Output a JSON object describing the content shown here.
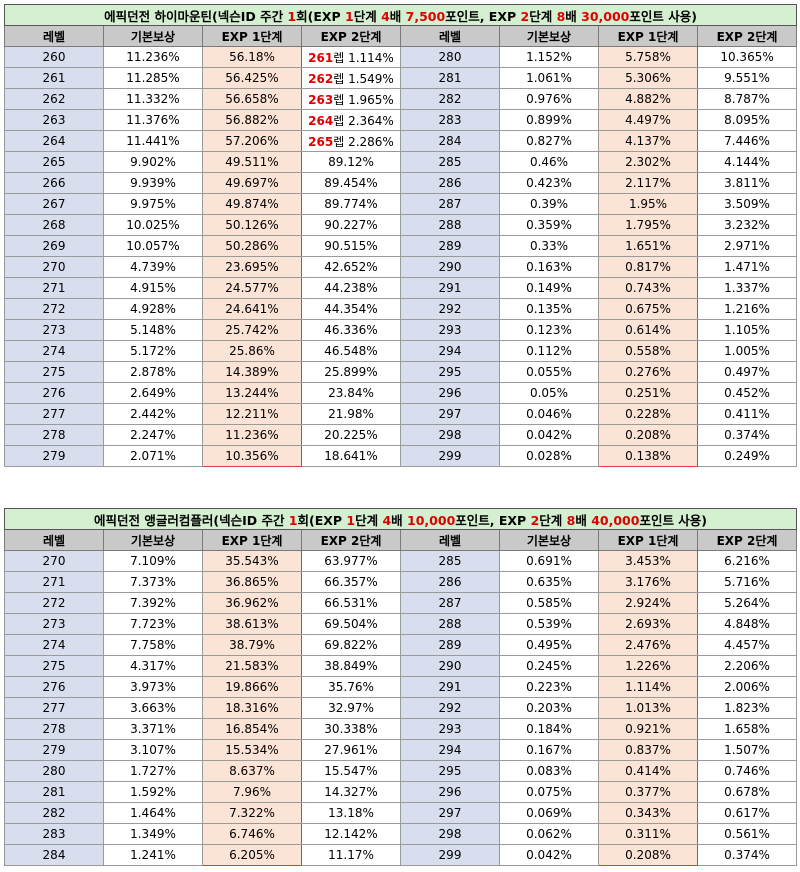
{
  "colors": {
    "title_bg": "#d4f0d0",
    "header_bg": "#c9c9c9",
    "level_bg": "#d9deee",
    "exp1_bg": "#fbe3d5",
    "exp1_border": "#e53935",
    "highlight_text": "#e00000"
  },
  "headers": [
    "레벨",
    "기본보상",
    "EXP 1단계",
    "EXP 2단계",
    "레벨",
    "기본보상",
    "EXP 1단계",
    "EXP 2단계"
  ],
  "tables": [
    {
      "title_parts": [
        {
          "t": "에픽던전 하이마운틴(넥슨ID 주간 ",
          "r": false
        },
        {
          "t": "1",
          "r": true
        },
        {
          "t": "회(EXP ",
          "r": false
        },
        {
          "t": "1",
          "r": true
        },
        {
          "t": "단계 ",
          "r": false
        },
        {
          "t": "4",
          "r": true
        },
        {
          "t": "배 ",
          "r": false
        },
        {
          "t": "7,500",
          "r": true
        },
        {
          "t": "포인트, EXP ",
          "r": false
        },
        {
          "t": "2",
          "r": true
        },
        {
          "t": "단계 ",
          "r": false
        },
        {
          "t": "8",
          "r": true
        },
        {
          "t": "배 ",
          "r": false
        },
        {
          "t": "30,000",
          "r": true
        },
        {
          "t": "포인트 사용)",
          "r": false
        }
      ],
      "rows": [
        {
          "l1": "260",
          "b1": "11.236%",
          "e1a": "56.18%",
          "e2a_lvl": "261",
          "e2a_suffix": "렙",
          "e2a": "1.114%",
          "l2": "280",
          "b2": "1.152%",
          "e1b": "5.758%",
          "e2b": "10.365%"
        },
        {
          "l1": "261",
          "b1": "11.285%",
          "e1a": "56.425%",
          "e2a_lvl": "262",
          "e2a_suffix": "렙",
          "e2a": "1.549%",
          "l2": "281",
          "b2": "1.061%",
          "e1b": "5.306%",
          "e2b": "9.551%"
        },
        {
          "l1": "262",
          "b1": "11.332%",
          "e1a": "56.658%",
          "e2a_lvl": "263",
          "e2a_suffix": "렙",
          "e2a": "1.965%",
          "l2": "282",
          "b2": "0.976%",
          "e1b": "4.882%",
          "e2b": "8.787%"
        },
        {
          "l1": "263",
          "b1": "11.376%",
          "e1a": "56.882%",
          "e2a_lvl": "264",
          "e2a_suffix": "렙",
          "e2a": "2.364%",
          "l2": "283",
          "b2": "0.899%",
          "e1b": "4.497%",
          "e2b": "8.095%"
        },
        {
          "l1": "264",
          "b1": "11.441%",
          "e1a": "57.206%",
          "e2a_lvl": "265",
          "e2a_suffix": "렙",
          "e2a": "2.286%",
          "l2": "284",
          "b2": "0.827%",
          "e1b": "4.137%",
          "e2b": "7.446%"
        },
        {
          "l1": "265",
          "b1": "9.902%",
          "e1a": "49.511%",
          "e2a": "89.12%",
          "l2": "285",
          "b2": "0.46%",
          "e1b": "2.302%",
          "e2b": "4.144%"
        },
        {
          "l1": "266",
          "b1": "9.939%",
          "e1a": "49.697%",
          "e2a": "89.454%",
          "l2": "286",
          "b2": "0.423%",
          "e1b": "2.117%",
          "e2b": "3.811%"
        },
        {
          "l1": "267",
          "b1": "9.975%",
          "e1a": "49.874%",
          "e2a": "89.774%",
          "l2": "287",
          "b2": "0.39%",
          "e1b": "1.95%",
          "e2b": "3.509%"
        },
        {
          "l1": "268",
          "b1": "10.025%",
          "e1a": "50.126%",
          "e2a": "90.227%",
          "l2": "288",
          "b2": "0.359%",
          "e1b": "1.795%",
          "e2b": "3.232%"
        },
        {
          "l1": "269",
          "b1": "10.057%",
          "e1a": "50.286%",
          "e2a": "90.515%",
          "l2": "289",
          "b2": "0.33%",
          "e1b": "1.651%",
          "e2b": "2.971%"
        },
        {
          "l1": "270",
          "b1": "4.739%",
          "e1a": "23.695%",
          "e2a": "42.652%",
          "l2": "290",
          "b2": "0.163%",
          "e1b": "0.817%",
          "e2b": "1.471%"
        },
        {
          "l1": "271",
          "b1": "4.915%",
          "e1a": "24.577%",
          "e2a": "44.238%",
          "l2": "291",
          "b2": "0.149%",
          "e1b": "0.743%",
          "e2b": "1.337%"
        },
        {
          "l1": "272",
          "b1": "4.928%",
          "e1a": "24.641%",
          "e2a": "44.354%",
          "l2": "292",
          "b2": "0.135%",
          "e1b": "0.675%",
          "e2b": "1.216%"
        },
        {
          "l1": "273",
          "b1": "5.148%",
          "e1a": "25.742%",
          "e2a": "46.336%",
          "l2": "293",
          "b2": "0.123%",
          "e1b": "0.614%",
          "e2b": "1.105%"
        },
        {
          "l1": "274",
          "b1": "5.172%",
          "e1a": "25.86%",
          "e2a": "46.548%",
          "l2": "294",
          "b2": "0.112%",
          "e1b": "0.558%",
          "e2b": "1.005%"
        },
        {
          "l1": "275",
          "b1": "2.878%",
          "e1a": "14.389%",
          "e2a": "25.899%",
          "l2": "295",
          "b2": "0.055%",
          "e1b": "0.276%",
          "e2b": "0.497%"
        },
        {
          "l1": "276",
          "b1": "2.649%",
          "e1a": "13.244%",
          "e2a": "23.84%",
          "l2": "296",
          "b2": "0.05%",
          "e1b": "0.251%",
          "e2b": "0.452%"
        },
        {
          "l1": "277",
          "b1": "2.442%",
          "e1a": "12.211%",
          "e2a": "21.98%",
          "l2": "297",
          "b2": "0.046%",
          "e1b": "0.228%",
          "e2b": "0.411%"
        },
        {
          "l1": "278",
          "b1": "2.247%",
          "e1a": "11.236%",
          "e2a": "20.225%",
          "l2": "298",
          "b2": "0.042%",
          "e1b": "0.208%",
          "e2b": "0.374%"
        },
        {
          "l1": "279",
          "b1": "2.071%",
          "e1a": "10.356%",
          "e2a": "18.641%",
          "l2": "299",
          "b2": "0.028%",
          "e1b": "0.138%",
          "e2b": "0.249%"
        }
      ]
    },
    {
      "title_parts": [
        {
          "t": "에픽던전 앵글러컴플러(넥슨ID 주간 ",
          "r": false
        },
        {
          "t": "1",
          "r": true
        },
        {
          "t": "회(EXP ",
          "r": false
        },
        {
          "t": "1",
          "r": true
        },
        {
          "t": "단계 ",
          "r": false
        },
        {
          "t": "4",
          "r": true
        },
        {
          "t": "배 ",
          "r": false
        },
        {
          "t": "10,000",
          "r": true
        },
        {
          "t": "포인트, EXP ",
          "r": false
        },
        {
          "t": "2",
          "r": true
        },
        {
          "t": "단계 ",
          "r": false
        },
        {
          "t": "8",
          "r": true
        },
        {
          "t": "배 ",
          "r": false
        },
        {
          "t": "40,000",
          "r": true
        },
        {
          "t": "포인트 사용)",
          "r": false
        }
      ],
      "rows": [
        {
          "l1": "270",
          "b1": "7.109%",
          "e1a": "35.543%",
          "e2a": "63.977%",
          "l2": "285",
          "b2": "0.691%",
          "e1b": "3.453%",
          "e2b": "6.216%"
        },
        {
          "l1": "271",
          "b1": "7.373%",
          "e1a": "36.865%",
          "e2a": "66.357%",
          "l2": "286",
          "b2": "0.635%",
          "e1b": "3.176%",
          "e2b": "5.716%"
        },
        {
          "l1": "272",
          "b1": "7.392%",
          "e1a": "36.962%",
          "e2a": "66.531%",
          "l2": "287",
          "b2": "0.585%",
          "e1b": "2.924%",
          "e2b": "5.264%"
        },
        {
          "l1": "273",
          "b1": "7.723%",
          "e1a": "38.613%",
          "e2a": "69.504%",
          "l2": "288",
          "b2": "0.539%",
          "e1b": "2.693%",
          "e2b": "4.848%"
        },
        {
          "l1": "274",
          "b1": "7.758%",
          "e1a": "38.79%",
          "e2a": "69.822%",
          "l2": "289",
          "b2": "0.495%",
          "e1b": "2.476%",
          "e2b": "4.457%"
        },
        {
          "l1": "275",
          "b1": "4.317%",
          "e1a": "21.583%",
          "e2a": "38.849%",
          "l2": "290",
          "b2": "0.245%",
          "e1b": "1.226%",
          "e2b": "2.206%"
        },
        {
          "l1": "276",
          "b1": "3.973%",
          "e1a": "19.866%",
          "e2a": "35.76%",
          "l2": "291",
          "b2": "0.223%",
          "e1b": "1.114%",
          "e2b": "2.006%"
        },
        {
          "l1": "277",
          "b1": "3.663%",
          "e1a": "18.316%",
          "e2a": "32.97%",
          "l2": "292",
          "b2": "0.203%",
          "e1b": "1.013%",
          "e2b": "1.823%"
        },
        {
          "l1": "278",
          "b1": "3.371%",
          "e1a": "16.854%",
          "e2a": "30.338%",
          "l2": "293",
          "b2": "0.184%",
          "e1b": "0.921%",
          "e2b": "1.658%"
        },
        {
          "l1": "279",
          "b1": "3.107%",
          "e1a": "15.534%",
          "e2a": "27.961%",
          "l2": "294",
          "b2": "0.167%",
          "e1b": "0.837%",
          "e2b": "1.507%"
        },
        {
          "l1": "280",
          "b1": "1.727%",
          "e1a": "8.637%",
          "e2a": "15.547%",
          "l2": "295",
          "b2": "0.083%",
          "e1b": "0.414%",
          "e2b": "0.746%"
        },
        {
          "l1": "281",
          "b1": "1.592%",
          "e1a": "7.96%",
          "e2a": "14.327%",
          "l2": "296",
          "b2": "0.075%",
          "e1b": "0.377%",
          "e2b": "0.678%"
        },
        {
          "l1": "282",
          "b1": "1.464%",
          "e1a": "7.322%",
          "e2a": "13.18%",
          "l2": "297",
          "b2": "0.069%",
          "e1b": "0.343%",
          "e2b": "0.617%"
        },
        {
          "l1": "283",
          "b1": "1.349%",
          "e1a": "6.746%",
          "e2a": "12.142%",
          "l2": "298",
          "b2": "0.062%",
          "e1b": "0.311%",
          "e2b": "0.561%"
        },
        {
          "l1": "284",
          "b1": "1.241%",
          "e1a": "6.205%",
          "e2a": "11.17%",
          "l2": "299",
          "b2": "0.042%",
          "e1b": "0.208%",
          "e2b": "0.374%"
        }
      ]
    }
  ]
}
